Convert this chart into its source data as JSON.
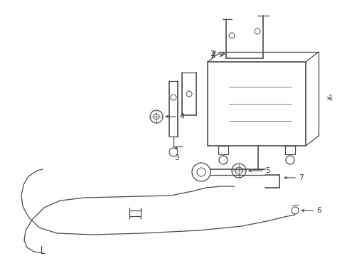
{
  "bg_color": "#ffffff",
  "line_color": "#4a4a4a",
  "label_color": "#333333",
  "lw": 0.9,
  "lw_thick": 1.2,
  "figsize": [
    4.89,
    3.6
  ],
  "dpi": 100,
  "xlim": [
    0,
    489
  ],
  "ylim": [
    0,
    360
  ]
}
